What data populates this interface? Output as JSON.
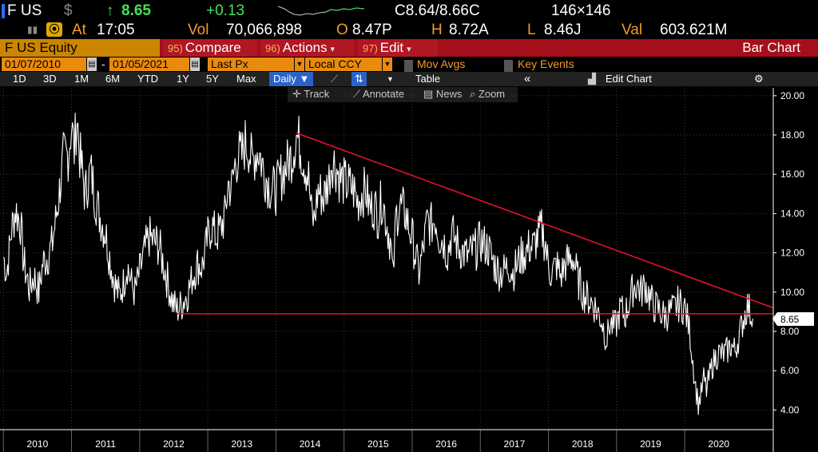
{
  "header": {
    "ticker": "F US",
    "currency": "$",
    "arrow": "↑",
    "price": "8.65",
    "change": "+0.13",
    "bid_ask": "C8.64/8.66C",
    "size": "146×146",
    "at_label": "At",
    "time": "17:05",
    "vol_label": "Vol",
    "volume": "70,066,898",
    "open_label": "O",
    "open": "8.47P",
    "high_label": "H",
    "high": "8.72A",
    "low_label": "L",
    "low": "8.46J",
    "val_label": "Val",
    "value": "603.621M"
  },
  "function_bar": {
    "security": "F US Equity",
    "compare_num": "95)",
    "compare": "Compare",
    "actions_num": "96)",
    "actions": "Actions",
    "edit_num": "97)",
    "edit": "Edit",
    "title": "Bar Chart"
  },
  "settings": {
    "start_date": "01/07/2010",
    "dash": "-",
    "end_date": "01/05/2021",
    "field": "Last Px",
    "currency": "Local CCY",
    "mov_avgs": "Mov Avgs",
    "key_events": "Key Events"
  },
  "periods": {
    "items": [
      "1D",
      "3D",
      "1M",
      "6M",
      "YTD",
      "1Y",
      "5Y",
      "Max"
    ],
    "frequency": "Daily ▼",
    "table": "Table",
    "collapse": "«",
    "edit_chart": "Edit Chart",
    "settings_icon": "⚙"
  },
  "toolbar": {
    "track": "Track",
    "annotate": "Annotate",
    "news": "News",
    "zoom": "Zoom"
  },
  "colors": {
    "price_line": "#ffffff",
    "trend_line": "#e8102a",
    "accent_orange": "#e88b0d",
    "function_red": "#a50f1c"
  },
  "chart_data": {
    "type": "line",
    "series": [
      {
        "name": "",
        "points": [
          [
            2010.0,
            11.8
          ],
          [
            2010.05,
            11.0
          ],
          [
            2010.12,
            13.2
          ],
          [
            2010.18,
            14.2
          ],
          [
            2010.25,
            13.5
          ],
          [
            2010.3,
            11.5
          ],
          [
            2010.38,
            10.2
          ],
          [
            2010.45,
            10.8
          ],
          [
            2010.52,
            10.0
          ],
          [
            2010.58,
            11.5
          ],
          [
            2010.65,
            11.8
          ],
          [
            2010.72,
            12.5
          ],
          [
            2010.8,
            14.5
          ],
          [
            2010.88,
            16.8
          ],
          [
            2010.95,
            17.0
          ],
          [
            2011.0,
            18.5
          ],
          [
            2011.04,
            17.2
          ],
          [
            2011.08,
            19.0
          ],
          [
            2011.12,
            17.0
          ],
          [
            2011.2,
            15.0
          ],
          [
            2011.28,
            16.2
          ],
          [
            2011.35,
            14.8
          ],
          [
            2011.42,
            13.8
          ],
          [
            2011.5,
            13.0
          ],
          [
            2011.56,
            11.8
          ],
          [
            2011.62,
            10.6
          ],
          [
            2011.7,
            9.8
          ],
          [
            2011.76,
            10.4
          ],
          [
            2011.82,
            11.4
          ],
          [
            2011.88,
            10.4
          ],
          [
            2011.93,
            10.0
          ],
          [
            2012.0,
            11.0
          ],
          [
            2012.08,
            12.2
          ],
          [
            2012.14,
            12.8
          ],
          [
            2012.2,
            12.6
          ],
          [
            2012.28,
            12.4
          ],
          [
            2012.35,
            11.4
          ],
          [
            2012.42,
            10.4
          ],
          [
            2012.48,
            9.5
          ],
          [
            2012.55,
            9.1
          ],
          [
            2012.62,
            9.4
          ],
          [
            2012.7,
            9.9
          ],
          [
            2012.78,
            10.8
          ],
          [
            2012.85,
            11.4
          ],
          [
            2012.92,
            11.3
          ],
          [
            2013.0,
            12.8
          ],
          [
            2013.06,
            13.4
          ],
          [
            2013.12,
            12.8
          ],
          [
            2013.18,
            13.2
          ],
          [
            2013.25,
            13.8
          ],
          [
            2013.3,
            15.5
          ],
          [
            2013.35,
            15.3
          ],
          [
            2013.4,
            16.5
          ],
          [
            2013.45,
            17.0
          ],
          [
            2013.5,
            16.9
          ],
          [
            2013.55,
            17.6
          ],
          [
            2013.6,
            17.4
          ],
          [
            2013.65,
            16.5
          ],
          [
            2013.7,
            17.1
          ],
          [
            2013.75,
            17.2
          ],
          [
            2013.82,
            16.2
          ],
          [
            2013.88,
            15.6
          ],
          [
            2013.94,
            15.2
          ],
          [
            2014.0,
            15.2
          ],
          [
            2014.06,
            15.8
          ],
          [
            2014.12,
            16.2
          ],
          [
            2014.18,
            16.6
          ],
          [
            2014.24,
            17.0
          ],
          [
            2014.3,
            18.0
          ],
          [
            2014.36,
            17.4
          ],
          [
            2014.42,
            16.6
          ],
          [
            2014.48,
            15.8
          ],
          [
            2014.52,
            14.0
          ],
          [
            2014.56,
            13.6
          ],
          [
            2014.62,
            15.2
          ],
          [
            2014.7,
            14.8
          ],
          [
            2014.78,
            15.8
          ],
          [
            2014.82,
            16.8
          ],
          [
            2014.88,
            16.4
          ],
          [
            2014.94,
            15.8
          ],
          [
            2015.0,
            15.6
          ],
          [
            2015.08,
            15.4
          ],
          [
            2015.14,
            15.2
          ],
          [
            2015.2,
            14.6
          ],
          [
            2015.26,
            15.0
          ],
          [
            2015.32,
            15.2
          ],
          [
            2015.38,
            14.2
          ],
          [
            2015.44,
            14.4
          ],
          [
            2015.5,
            13.9
          ],
          [
            2015.56,
            14.8
          ],
          [
            2015.62,
            13.6
          ],
          [
            2015.68,
            12.6
          ],
          [
            2015.72,
            10.6
          ],
          [
            2015.76,
            13.8
          ],
          [
            2015.82,
            14.4
          ],
          [
            2015.9,
            14.0
          ],
          [
            2015.96,
            13.2
          ],
          [
            2016.0,
            12.8
          ],
          [
            2016.06,
            11.6
          ],
          [
            2016.1,
            11.0
          ],
          [
            2016.16,
            12.2
          ],
          [
            2016.22,
            13.6
          ],
          [
            2016.28,
            13.4
          ],
          [
            2016.34,
            13.8
          ],
          [
            2016.4,
            12.8
          ],
          [
            2016.46,
            12.6
          ],
          [
            2016.52,
            12.0
          ],
          [
            2016.58,
            13.0
          ],
          [
            2016.64,
            12.6
          ],
          [
            2016.7,
            12.2
          ],
          [
            2016.76,
            12.0
          ],
          [
            2016.82,
            11.8
          ],
          [
            2016.88,
            12.1
          ],
          [
            2016.94,
            12.2
          ],
          [
            2017.0,
            12.6
          ],
          [
            2017.06,
            12.4
          ],
          [
            2017.12,
            12.2
          ],
          [
            2017.18,
            11.6
          ],
          [
            2017.24,
            11.2
          ],
          [
            2017.3,
            11.0
          ],
          [
            2017.36,
            11.1
          ],
          [
            2017.42,
            11.4
          ],
          [
            2017.48,
            11.0
          ],
          [
            2017.54,
            11.4
          ],
          [
            2017.6,
            11.8
          ],
          [
            2017.66,
            12.0
          ],
          [
            2017.72,
            12.3
          ],
          [
            2017.78,
            12.3
          ],
          [
            2017.84,
            12.8
          ],
          [
            2017.9,
            13.2
          ],
          [
            2017.96,
            12.4
          ],
          [
            2018.0,
            11.2
          ],
          [
            2018.06,
            11.0
          ],
          [
            2018.12,
            11.4
          ],
          [
            2018.18,
            10.8
          ],
          [
            2018.24,
            11.4
          ],
          [
            2018.3,
            11.6
          ],
          [
            2018.36,
            11.8
          ],
          [
            2018.42,
            10.8
          ],
          [
            2018.48,
            10.2
          ],
          [
            2018.54,
            9.8
          ],
          [
            2018.6,
            9.6
          ],
          [
            2018.66,
            9.4
          ],
          [
            2018.72,
            9.0
          ],
          [
            2018.78,
            8.6
          ],
          [
            2018.82,
            8.0
          ],
          [
            2018.86,
            7.6
          ],
          [
            2018.9,
            8.4
          ],
          [
            2018.96,
            8.2
          ],
          [
            2019.0,
            8.4
          ],
          [
            2019.06,
            9.2
          ],
          [
            2019.12,
            8.8
          ],
          [
            2019.18,
            9.4
          ],
          [
            2019.24,
            10.2
          ],
          [
            2019.3,
            10.4
          ],
          [
            2019.36,
            10.0
          ],
          [
            2019.42,
            10.4
          ],
          [
            2019.48,
            9.8
          ],
          [
            2019.54,
            9.3
          ],
          [
            2019.6,
            9.2
          ],
          [
            2019.66,
            8.9
          ],
          [
            2019.72,
            8.8
          ],
          [
            2019.78,
            9.0
          ],
          [
            2019.84,
            9.1
          ],
          [
            2019.9,
            9.4
          ],
          [
            2019.96,
            9.3
          ],
          [
            2020.0,
            9.2
          ],
          [
            2020.04,
            8.6
          ],
          [
            2020.08,
            7.8
          ],
          [
            2020.12,
            6.5
          ],
          [
            2020.16,
            5.2
          ],
          [
            2020.2,
            4.3
          ],
          [
            2020.24,
            4.8
          ],
          [
            2020.28,
            5.6
          ],
          [
            2020.32,
            5.0
          ],
          [
            2020.38,
            6.0
          ],
          [
            2020.44,
            6.6
          ],
          [
            2020.5,
            6.9
          ],
          [
            2020.56,
            6.8
          ],
          [
            2020.62,
            7.0
          ],
          [
            2020.68,
            7.3
          ],
          [
            2020.74,
            7.0
          ],
          [
            2020.8,
            7.8
          ],
          [
            2020.86,
            8.6
          ],
          [
            2020.92,
            9.3
          ],
          [
            2020.96,
            9.0
          ],
          [
            2021.0,
            8.65
          ]
        ]
      }
    ],
    "trend_lines": [
      {
        "kind": "descending",
        "from": [
          2014.3,
          18.1
        ],
        "to": [
          2021.3,
          9.2
        ]
      },
      {
        "kind": "horizontal",
        "from": [
          2012.55,
          8.9
        ],
        "to": [
          2021.3,
          8.9
        ]
      }
    ],
    "last_value_label": "8.65",
    "last_value": 8.65,
    "xlim": [
      2009.95,
      2021.3
    ],
    "ylim": [
      3.0,
      20.4
    ],
    "y_ticks": [
      "20.00",
      "18.00",
      "16.00",
      "14.00",
      "12.00",
      "10.00",
      "8.00",
      "6.00",
      "4.00"
    ],
    "y_tick_values": [
      20,
      18,
      16,
      14,
      12,
      10,
      8,
      6,
      4
    ],
    "x_ticks": [
      "2010",
      "2011",
      "2012",
      "2013",
      "2014",
      "2015",
      "2016",
      "2017",
      "2018",
      "2019",
      "2020"
    ],
    "grid": true
  }
}
